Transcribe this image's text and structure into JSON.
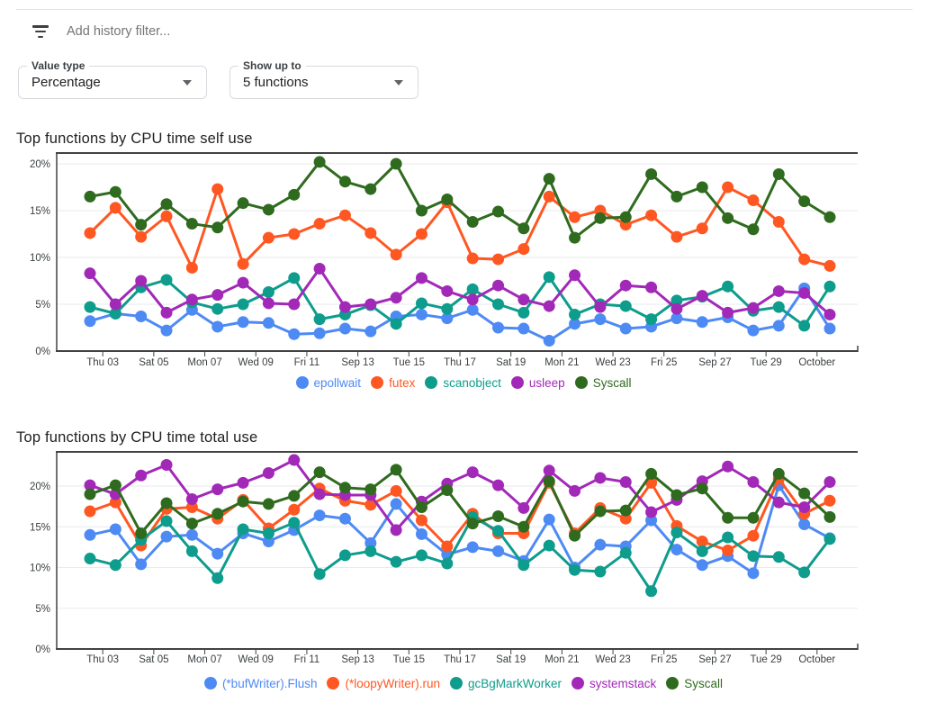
{
  "filter_bar": {
    "icon": "filter-list-icon",
    "placeholder": "Add history filter..."
  },
  "controls": {
    "value_type": {
      "label": "Value type",
      "value": "Percentage",
      "icon": "dropdown-arrow-icon"
    },
    "show_up_to": {
      "label": "Show up to",
      "value": "5 functions",
      "icon": "dropdown-arrow-icon"
    }
  },
  "axis_colors": {
    "axis": "#424242",
    "grid": "#e8eaed",
    "tick_label": "#3c4043"
  },
  "chart_data": [
    {
      "type": "line",
      "title": "Top functions by CPU time self use",
      "xlabel": "",
      "ylabel": "",
      "ylim": [
        0,
        21.2
      ],
      "grid": true,
      "legend_position": "bottom",
      "ytick_values": [
        0,
        5,
        10,
        15,
        20
      ],
      "ytick_labels": [
        "0%",
        "5%",
        "10%",
        "15%",
        "20%"
      ],
      "x_labels": [
        "Thu 03",
        "Sat 05",
        "Mon 07",
        "Wed 09",
        "Fri 11",
        "Sep 13",
        "Tue 15",
        "Thu 17",
        "Sat 19",
        "Mon 21",
        "Wed 23",
        "Fri 25",
        "Sep 27",
        "Tue 29",
        "October"
      ],
      "series": [
        {
          "name": "epollwait",
          "color": "#4E8AF4",
          "values": [
            3.2,
            4.0,
            3.7,
            2.2,
            4.4,
            2.6,
            3.1,
            3.0,
            1.8,
            1.9,
            2.4,
            2.1,
            3.7,
            3.9,
            3.5,
            4.4,
            2.5,
            2.4,
            1.1,
            2.9,
            3.4,
            2.4,
            2.6,
            3.5,
            3.1,
            3.6,
            2.2,
            2.7,
            6.7,
            2.4
          ]
        },
        {
          "name": "futex",
          "color": "#FF5722",
          "values": [
            12.6,
            15.3,
            12.2,
            14.4,
            8.9,
            17.3,
            9.3,
            12.1,
            12.5,
            13.6,
            14.5,
            12.6,
            10.3,
            12.5,
            15.9,
            9.9,
            9.8,
            10.9,
            16.5,
            14.3,
            15.0,
            13.5,
            14.5,
            12.2,
            13.1,
            17.5,
            16.1,
            13.8,
            9.8,
            9.1
          ]
        },
        {
          "name": "scanobject",
          "color": "#0E9C8C",
          "values": [
            4.7,
            4.0,
            6.8,
            7.6,
            5.2,
            4.5,
            5.0,
            6.3,
            7.8,
            3.4,
            3.9,
            4.9,
            2.9,
            5.1,
            4.5,
            6.6,
            5.0,
            4.1,
            7.9,
            3.9,
            5.0,
            4.8,
            3.4,
            5.4,
            5.8,
            6.9,
            4.3,
            4.7,
            2.7,
            6.9
          ]
        },
        {
          "name": "usleep",
          "color": "#A229B8",
          "values": [
            8.3,
            5.0,
            7.5,
            4.1,
            5.5,
            6.0,
            7.3,
            5.1,
            5.0,
            8.8,
            4.7,
            5.0,
            5.7,
            7.8,
            6.4,
            5.5,
            7.0,
            5.5,
            4.8,
            8.1,
            4.7,
            7.0,
            6.8,
            4.5,
            5.9,
            4.1,
            4.6,
            6.4,
            6.2,
            3.9
          ]
        },
        {
          "name": "Syscall",
          "color": "#2F6B1E",
          "values": [
            16.5,
            17.0,
            13.5,
            15.7,
            13.6,
            13.2,
            15.8,
            15.1,
            16.7,
            20.2,
            18.1,
            17.3,
            20.0,
            15.0,
            16.2,
            13.8,
            14.9,
            13.1,
            18.4,
            12.1,
            14.2,
            14.3,
            18.9,
            16.5,
            17.5,
            14.2,
            13.0,
            18.9,
            16.0,
            14.3
          ]
        }
      ]
    },
    {
      "type": "line",
      "title": "Top functions by CPU time total use",
      "xlabel": "",
      "ylabel": "",
      "ylim": [
        0,
        24.2
      ],
      "grid": true,
      "legend_position": "bottom",
      "ytick_values": [
        0,
        5,
        10,
        15,
        20
      ],
      "ytick_labels": [
        "0%",
        "5%",
        "10%",
        "15%",
        "20%"
      ],
      "x_labels": [
        "Thu 03",
        "Sat 05",
        "Mon 07",
        "Wed 09",
        "Fri 11",
        "Sep 13",
        "Tue 15",
        "Thu 17",
        "Sat 19",
        "Mon 21",
        "Wed 23",
        "Fri 25",
        "Sep 27",
        "Tue 29",
        "October"
      ],
      "series": [
        {
          "name": "(*bufWriter).Flush",
          "color": "#4E8AF4",
          "values": [
            14.0,
            14.7,
            10.4,
            13.8,
            14.0,
            11.7,
            14.2,
            13.2,
            14.6,
            16.4,
            16.0,
            13.0,
            17.8,
            14.1,
            11.6,
            12.5,
            12.0,
            10.8,
            15.9,
            10.0,
            12.8,
            12.6,
            15.8,
            12.2,
            10.3,
            11.4,
            9.3,
            20.1,
            15.3,
            13.6
          ]
        },
        {
          "name": "(*loopyWriter).run",
          "color": "#FF5722",
          "values": [
            16.9,
            18.0,
            12.7,
            17.2,
            17.4,
            16.0,
            18.3,
            14.8,
            17.1,
            19.7,
            18.2,
            17.7,
            19.4,
            15.8,
            12.6,
            16.6,
            14.2,
            14.2,
            20.4,
            14.2,
            17.3,
            16.0,
            20.4,
            15.1,
            13.2,
            12.1,
            13.9,
            20.9,
            16.6,
            18.2
          ]
        },
        {
          "name": "gcBgMarkWorker",
          "color": "#0E9C8C",
          "values": [
            11.1,
            10.3,
            13.4,
            15.7,
            12.0,
            8.7,
            14.7,
            14.2,
            15.5,
            9.2,
            11.5,
            12.0,
            10.7,
            11.5,
            10.5,
            16.2,
            14.5,
            10.3,
            12.7,
            9.7,
            9.5,
            11.8,
            7.1,
            14.3,
            12.0,
            13.7,
            11.4,
            11.3,
            9.4,
            13.5
          ]
        },
        {
          "name": "systemstack",
          "color": "#A229B8",
          "values": [
            20.1,
            19.0,
            21.3,
            22.6,
            18.4,
            19.6,
            20.4,
            21.6,
            23.2,
            19.0,
            18.9,
            18.9,
            14.6,
            18.1,
            20.3,
            21.7,
            20.1,
            17.3,
            21.9,
            19.4,
            21.0,
            20.5,
            16.8,
            18.3,
            20.6,
            22.4,
            20.5,
            18.0,
            17.4,
            20.5
          ]
        },
        {
          "name": "Syscall",
          "color": "#2F6B1E",
          "values": [
            19.0,
            20.1,
            14.2,
            17.9,
            15.4,
            16.6,
            18.1,
            17.8,
            18.8,
            21.7,
            19.8,
            19.6,
            22.0,
            17.4,
            19.5,
            15.4,
            16.3,
            15.0,
            20.6,
            13.9,
            16.9,
            17.0,
            21.5,
            18.9,
            19.7,
            16.1,
            16.1,
            21.5,
            19.1,
            16.2
          ]
        }
      ]
    }
  ]
}
